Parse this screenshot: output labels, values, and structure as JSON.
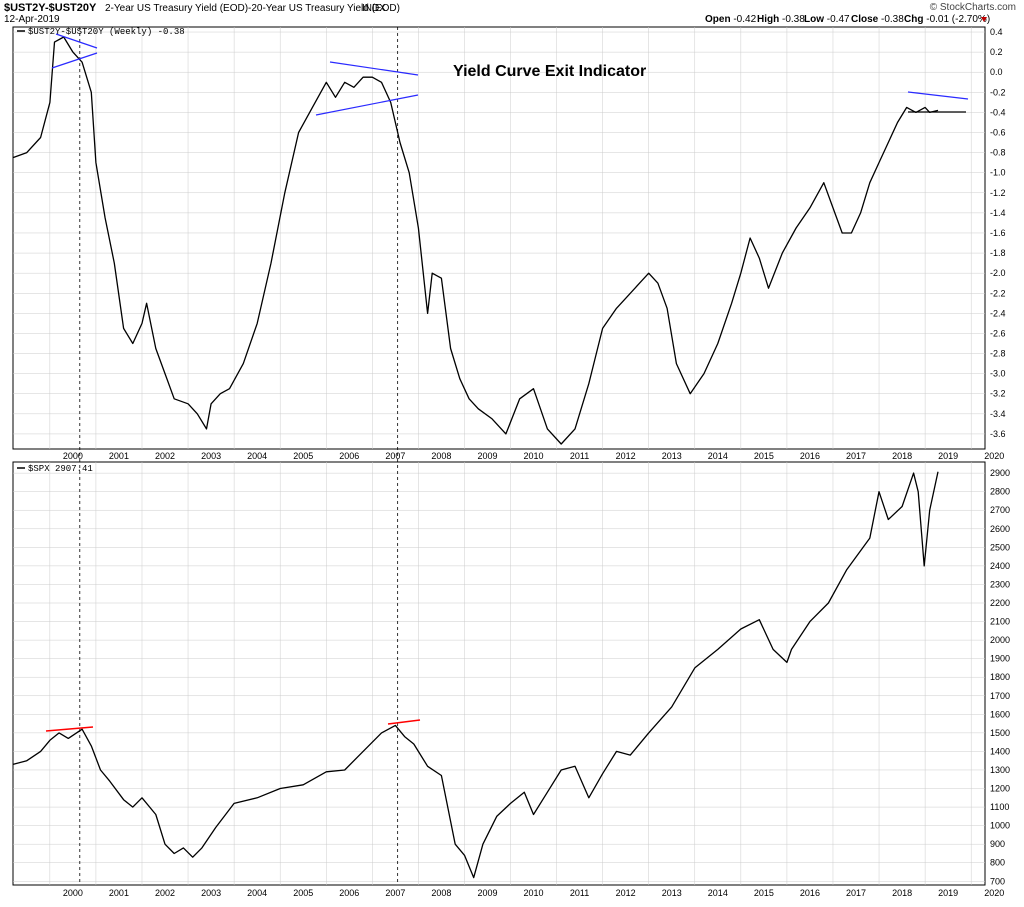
{
  "header": {
    "symbol": "$UST2Y-$UST20Y",
    "description": "2-Year US Treasury Yield (EOD)-20-Year US Treasury Yield (EOD)",
    "exchange": "INDX",
    "date": "12-Apr-2019",
    "brand": "© StockCharts.com",
    "ohlc": {
      "open_label": "Open",
      "open": "-0.42",
      "high_label": "High",
      "high": "-0.38",
      "low_label": "Low",
      "low": "-0.47",
      "close_label": "Close",
      "close": "-0.38",
      "chg_label": "Chg",
      "chg": "-0.01 (-2.70%)"
    }
  },
  "colors": {
    "line": "#000000",
    "trend_blue": "#2a2aff",
    "trend_red": "#ff0000",
    "grid": "#cccccc"
  },
  "chart_data": [
    {
      "type": "line",
      "legend": "$UST2Y-$UST20Y (Weekly) -0.38",
      "annotation": "Yield Curve Exit Indicator",
      "ylim": [
        -3.75,
        0.45
      ],
      "y_ticks": [
        "0.4",
        "0.2",
        "0.0",
        "-0.2",
        "-0.4",
        "-0.6",
        "-0.8",
        "-1.0",
        "-1.2",
        "-1.4",
        "-1.6",
        "-1.8",
        "-2.0",
        "-2.2",
        "-2.4",
        "-2.6",
        "-2.8",
        "-3.0",
        "-3.2",
        "-3.4",
        "-3.6"
      ],
      "x_ticks": [
        "2000",
        "2001",
        "2002",
        "2003",
        "2004",
        "2005",
        "2006",
        "2007",
        "2008",
        "2009",
        "2010",
        "2011",
        "2012",
        "2013",
        "2014",
        "2015",
        "2016",
        "2017",
        "2018",
        "2019",
        "2020"
      ],
      "x": [
        1999.2,
        1999.5,
        1999.8,
        2000.0,
        2000.1,
        2000.3,
        2000.5,
        2000.7,
        2000.9,
        2001.0,
        2001.2,
        2001.4,
        2001.6,
        2001.8,
        2002.0,
        2002.1,
        2002.3,
        2002.5,
        2002.7,
        2003.0,
        2003.2,
        2003.4,
        2003.5,
        2003.7,
        2003.9,
        2004.2,
        2004.5,
        2004.8,
        2005.1,
        2005.4,
        2005.7,
        2006.0,
        2006.2,
        2006.4,
        2006.6,
        2006.8,
        2007.0,
        2007.2,
        2007.4,
        2007.6,
        2007.8,
        2008.0,
        2008.2,
        2008.3,
        2008.5,
        2008.7,
        2008.9,
        2009.1,
        2009.3,
        2009.6,
        2009.9,
        2010.2,
        2010.5,
        2010.8,
        2011.1,
        2011.4,
        2011.7,
        2012.0,
        2012.3,
        2012.5,
        2012.8,
        2013.0,
        2013.2,
        2013.4,
        2013.6,
        2013.9,
        2014.2,
        2014.5,
        2014.8,
        2015.0,
        2015.2,
        2015.4,
        2015.6,
        2015.9,
        2016.2,
        2016.5,
        2016.8,
        2017.0,
        2017.2,
        2017.4,
        2017.6,
        2017.8,
        2018.0,
        2018.2,
        2018.4,
        2018.6,
        2018.8,
        2019.0,
        2019.1,
        2019.28
      ],
      "y": [
        -0.85,
        -0.8,
        -0.65,
        -0.3,
        0.3,
        0.35,
        0.2,
        0.1,
        -0.2,
        -0.9,
        -1.45,
        -1.9,
        -2.55,
        -2.7,
        -2.5,
        -2.3,
        -2.75,
        -3.0,
        -3.25,
        -3.3,
        -3.4,
        -3.55,
        -3.3,
        -3.2,
        -3.15,
        -2.9,
        -2.5,
        -1.9,
        -1.2,
        -0.6,
        -0.35,
        -0.1,
        -0.25,
        -0.1,
        -0.15,
        -0.05,
        -0.05,
        -0.1,
        -0.3,
        -0.7,
        -1.0,
        -1.55,
        -2.4,
        -2.0,
        -2.05,
        -2.75,
        -3.05,
        -3.25,
        -3.35,
        -3.45,
        -3.6,
        -3.25,
        -3.15,
        -3.55,
        -3.7,
        -3.55,
        -3.1,
        -2.55,
        -2.35,
        -2.25,
        -2.1,
        -2.0,
        -2.1,
        -2.35,
        -2.9,
        -3.2,
        -3.0,
        -2.7,
        -2.3,
        -2.0,
        -1.65,
        -1.85,
        -2.15,
        -1.8,
        -1.55,
        -1.35,
        -1.1,
        -1.35,
        -1.6,
        -1.6,
        -1.4,
        -1.1,
        -0.9,
        -0.7,
        -0.5,
        -0.35,
        -0.4,
        -0.35,
        -0.4,
        -0.38
      ],
      "dashed_lines_x": [
        2000.65,
        2007.55
      ]
    },
    {
      "type": "line",
      "legend": "$SPX 2907.41",
      "ylim": [
        680,
        2960
      ],
      "y_ticks": [
        "2900",
        "2800",
        "2700",
        "2600",
        "2500",
        "2400",
        "2300",
        "2200",
        "2100",
        "2000",
        "1900",
        "1800",
        "1700",
        "1600",
        "1500",
        "1400",
        "1300",
        "1200",
        "1100",
        "1000",
        "900",
        "800",
        "700"
      ],
      "x_ticks": [
        "2000",
        "2001",
        "2002",
        "2003",
        "2004",
        "2005",
        "2006",
        "2007",
        "2008",
        "2009",
        "2010",
        "2011",
        "2012",
        "2013",
        "2014",
        "2015",
        "2016",
        "2017",
        "2018",
        "2019",
        "2020"
      ],
      "x": [
        1999.2,
        1999.5,
        1999.8,
        2000.0,
        2000.2,
        2000.4,
        2000.7,
        2000.9,
        2001.1,
        2001.3,
        2001.6,
        2001.8,
        2002.0,
        2002.3,
        2002.5,
        2002.7,
        2002.9,
        2003.1,
        2003.3,
        2003.6,
        2004.0,
        2004.5,
        2005.0,
        2005.5,
        2006.0,
        2006.4,
        2006.8,
        2007.2,
        2007.5,
        2007.7,
        2007.9,
        2008.2,
        2008.5,
        2008.8,
        2009.0,
        2009.2,
        2009.4,
        2009.7,
        2010.0,
        2010.3,
        2010.5,
        2010.8,
        2011.1,
        2011.4,
        2011.7,
        2012.0,
        2012.3,
        2012.6,
        2013.0,
        2013.5,
        2014.0,
        2014.5,
        2015.0,
        2015.4,
        2015.7,
        2016.0,
        2016.1,
        2016.5,
        2016.9,
        2017.3,
        2017.8,
        2018.0,
        2018.2,
        2018.5,
        2018.75,
        2018.85,
        2018.98,
        2019.1,
        2019.28
      ],
      "y": [
        1330,
        1350,
        1400,
        1460,
        1500,
        1470,
        1520,
        1430,
        1300,
        1240,
        1140,
        1100,
        1150,
        1060,
        900,
        850,
        880,
        830,
        880,
        990,
        1120,
        1150,
        1200,
        1220,
        1290,
        1300,
        1400,
        1500,
        1540,
        1480,
        1440,
        1320,
        1270,
        900,
        840,
        720,
        900,
        1050,
        1120,
        1180,
        1060,
        1180,
        1300,
        1320,
        1150,
        1280,
        1400,
        1380,
        1500,
        1640,
        1850,
        1950,
        2060,
        2110,
        1950,
        1880,
        1950,
        2100,
        2200,
        2380,
        2550,
        2800,
        2650,
        2720,
        2900,
        2800,
        2400,
        2700,
        2907
      ]
    }
  ]
}
